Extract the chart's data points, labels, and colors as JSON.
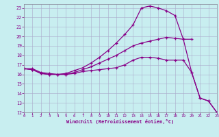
{
  "xlabel": "Windchill (Refroidissement éolien,°C)",
  "bg_color": "#c8eef0",
  "grid_color": "#aaaacc",
  "line_color": "#880088",
  "xlim": [
    0,
    23
  ],
  "ylim": [
    12,
    23.4
  ],
  "yticks": [
    12,
    13,
    14,
    15,
    16,
    17,
    18,
    19,
    20,
    21,
    22,
    23
  ],
  "xticks": [
    0,
    1,
    2,
    3,
    4,
    5,
    6,
    7,
    8,
    9,
    10,
    11,
    12,
    13,
    14,
    15,
    16,
    17,
    18,
    19,
    20,
    21,
    22,
    23
  ],
  "line1_x": [
    0,
    1,
    2,
    3,
    4,
    5,
    6,
    7,
    8,
    9,
    10,
    11,
    12,
    13,
    14,
    15,
    16,
    17,
    18,
    19,
    20,
    21,
    22,
    23
  ],
  "line1_y": [
    16.6,
    16.6,
    16.2,
    16.1,
    16.0,
    16.0,
    16.1,
    16.3,
    16.4,
    16.5,
    16.6,
    16.7,
    17.0,
    17.5,
    17.8,
    17.8,
    17.7,
    17.5,
    17.5,
    17.5,
    16.2,
    13.5,
    13.2,
    12.0
  ],
  "line2_x": [
    0,
    1,
    2,
    3,
    4,
    5,
    6,
    7,
    8,
    9,
    10,
    11,
    12,
    13,
    14,
    15,
    16,
    17,
    18,
    19,
    20
  ],
  "line2_y": [
    16.6,
    16.5,
    16.1,
    16.0,
    16.0,
    16.0,
    16.2,
    16.5,
    16.8,
    17.2,
    17.6,
    18.0,
    18.5,
    19.0,
    19.3,
    19.5,
    19.7,
    19.9,
    19.8,
    19.7,
    19.7
  ],
  "line3_x": [
    0,
    1,
    2,
    3,
    4,
    5,
    6,
    7,
    8,
    9,
    10,
    11,
    12,
    13,
    14,
    15,
    16,
    17,
    18,
    19,
    20,
    21,
    22,
    23
  ],
  "line3_y": [
    16.6,
    16.5,
    16.1,
    16.0,
    16.0,
    16.1,
    16.4,
    16.7,
    17.2,
    17.8,
    18.5,
    19.3,
    20.2,
    21.2,
    23.0,
    23.2,
    23.0,
    22.7,
    22.2,
    19.7,
    16.2,
    13.5,
    13.2,
    12.0
  ]
}
